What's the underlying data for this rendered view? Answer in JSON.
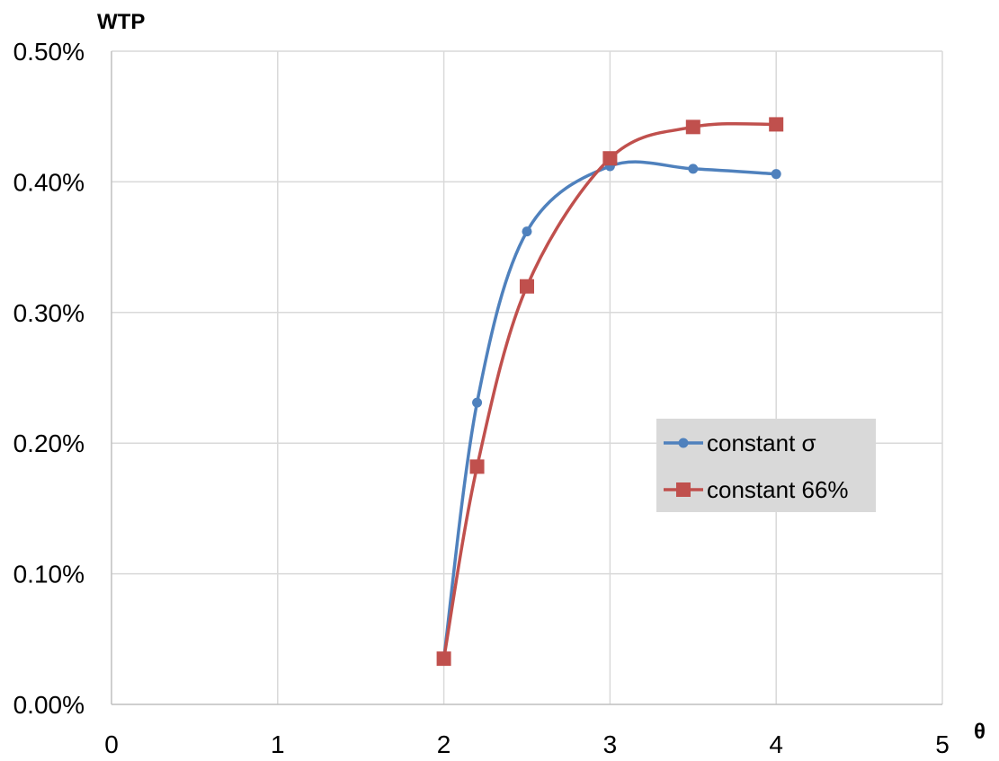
{
  "chart_data": {
    "type": "line",
    "title": "",
    "xlabel": "θ",
    "ylabel": "WTP",
    "xlim": [
      0,
      5
    ],
    "ylim": [
      0,
      0.005
    ],
    "x_ticks": [
      0,
      1,
      2,
      3,
      4,
      5
    ],
    "x_tick_labels": [
      "0",
      "1",
      "2",
      "3",
      "4",
      "5"
    ],
    "y_ticks": [
      0,
      0.001,
      0.002,
      0.003,
      0.004,
      0.005
    ],
    "y_tick_labels": [
      "0.00%",
      "0.10%",
      "0.20%",
      "0.30%",
      "0.40%",
      "0.50%"
    ],
    "grid": true,
    "legend_position": "right",
    "smooth": true,
    "series": [
      {
        "name": "constant σ",
        "color": "#4f81bd",
        "marker": "circle",
        "x": [
          2,
          2.2,
          2.5,
          3,
          3.5,
          4
        ],
        "y": [
          0.00035,
          0.00231,
          0.00362,
          0.00412,
          0.0041,
          0.00406
        ]
      },
      {
        "name": "constant 66%",
        "color": "#c0504d",
        "marker": "square",
        "x": [
          2,
          2.2,
          2.5,
          3,
          3.5,
          4
        ],
        "y": [
          0.00035,
          0.00182,
          0.0032,
          0.00418,
          0.00442,
          0.00444
        ]
      }
    ]
  }
}
